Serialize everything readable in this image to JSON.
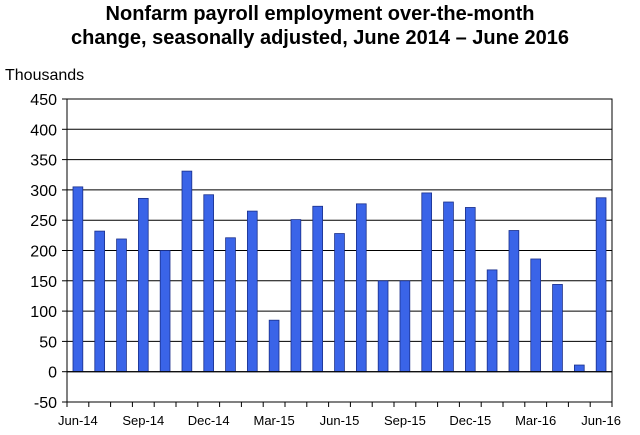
{
  "chart_data": {
    "type": "bar",
    "title_lines": [
      "Nonfarm payroll employment over-the-month",
      "change, seasonally adjusted, June 2014 – June 2016"
    ],
    "ylabel": "Thousands",
    "xlabel": "",
    "ylim": [
      -50,
      450
    ],
    "yticks": [
      -50,
      0,
      50,
      100,
      150,
      200,
      250,
      300,
      350,
      400,
      450
    ],
    "grid": true,
    "bar_color": "#3a64e8",
    "categories": [
      "Jun-14",
      "Jul-14",
      "Aug-14",
      "Sep-14",
      "Oct-14",
      "Nov-14",
      "Dec-14",
      "Jan-15",
      "Feb-15",
      "Mar-15",
      "Apr-15",
      "May-15",
      "Jun-15",
      "Jul-15",
      "Aug-15",
      "Sep-15",
      "Oct-15",
      "Nov-15",
      "Dec-15",
      "Jan-16",
      "Feb-16",
      "Mar-16",
      "Apr-16",
      "May-16",
      "Jun-16"
    ],
    "values": [
      305,
      232,
      219,
      286,
      200,
      331,
      292,
      221,
      265,
      85,
      251,
      273,
      228,
      277,
      150,
      150,
      295,
      280,
      271,
      168,
      233,
      186,
      144,
      11,
      287
    ],
    "xtick_labels": [
      {
        "index": 0,
        "label": "Jun-14"
      },
      {
        "index": 3,
        "label": "Sep-14"
      },
      {
        "index": 6,
        "label": "Dec-14"
      },
      {
        "index": 9,
        "label": "Mar-15"
      },
      {
        "index": 12,
        "label": "Jun-15"
      },
      {
        "index": 15,
        "label": "Sep-15"
      },
      {
        "index": 18,
        "label": "Dec-15"
      },
      {
        "index": 21,
        "label": "Mar-16"
      },
      {
        "index": 24,
        "label": "Jun-16"
      }
    ]
  }
}
